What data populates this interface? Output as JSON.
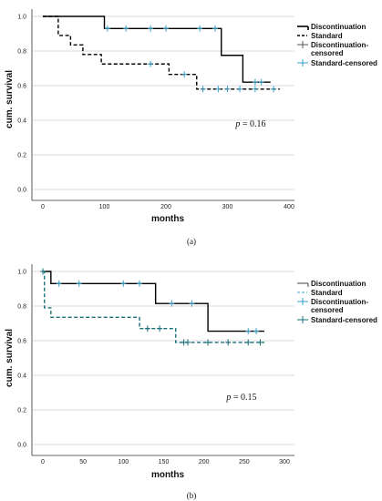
{
  "chart_data": [
    {
      "type": "line",
      "panel_label": "(a)",
      "xlabel": "months",
      "ylabel": "cum. survival",
      "xlim": [
        0,
        400
      ],
      "ylim": [
        0.0,
        1.0
      ],
      "xticks": [
        "0",
        "100",
        "200",
        "300",
        "400"
      ],
      "yticks": [
        "0.0",
        "0.2",
        "0.4",
        "0.6",
        "0.8",
        "1.0"
      ],
      "grid": "horizontal",
      "legend_position": "right",
      "legend": [
        "Discontinuation",
        "Standard",
        "Discontinuation-censored",
        "Standard-censored"
      ],
      "annotation": {
        "p_label": "p",
        "p_rest": " = 0.16"
      },
      "series": [
        {
          "name": "Discontinuation",
          "style": "solid",
          "color": "#000000",
          "steps": [
            [
              0,
              1.0
            ],
            [
              100,
              0.93
            ],
            [
              290,
              0.775
            ],
            [
              325,
              0.62
            ],
            [
              370,
              0.62
            ]
          ],
          "censored": [
            [
              105,
              0.93
            ],
            [
              135,
              0.93
            ],
            [
              175,
              0.93
            ],
            [
              200,
              0.93
            ],
            [
              255,
              0.93
            ],
            [
              280,
              0.93
            ],
            [
              345,
              0.62
            ],
            [
              355,
              0.62
            ]
          ]
        },
        {
          "name": "Standard",
          "style": "dashed",
          "color": "#000000",
          "steps": [
            [
              0,
              1.0
            ],
            [
              25,
              0.89
            ],
            [
              45,
              0.835
            ],
            [
              65,
              0.78
            ],
            [
              95,
              0.725
            ],
            [
              205,
              0.665
            ],
            [
              250,
              0.58
            ],
            [
              385,
              0.58
            ]
          ],
          "censored": [
            [
              175,
              0.725
            ],
            [
              230,
              0.665
            ],
            [
              260,
              0.58
            ],
            [
              285,
              0.58
            ],
            [
              300,
              0.58
            ],
            [
              320,
              0.58
            ],
            [
              345,
              0.58
            ],
            [
              375,
              0.58
            ]
          ]
        }
      ]
    },
    {
      "type": "line",
      "panel_label": "(b)",
      "xlabel": "months",
      "ylabel": "cum. survival",
      "xlim": [
        0,
        300
      ],
      "ylim": [
        0.0,
        1.0
      ],
      "xticks": [
        "0",
        "50",
        "100",
        "150",
        "200",
        "250",
        "300"
      ],
      "yticks": [
        "0.0",
        "0.2",
        "0.4",
        "0.6",
        "0.8",
        "1.0"
      ],
      "grid": "horizontal",
      "legend_position": "right",
      "legend": [
        "Discontinuation",
        "Standard",
        "Discontinuation-censored",
        "Standard-censored"
      ],
      "annotation": {
        "p_label": "p",
        "p_rest": " = 0.15"
      },
      "series": [
        {
          "name": "Discontinuation",
          "style": "solid",
          "color": "#000000",
          "steps": [
            [
              0,
              1.0
            ],
            [
              10,
              0.93
            ],
            [
              140,
              0.815
            ],
            [
              205,
              0.655
            ],
            [
              275,
              0.655
            ]
          ],
          "censored": [
            [
              20,
              0.93
            ],
            [
              45,
              0.93
            ],
            [
              100,
              0.93
            ],
            [
              120,
              0.93
            ],
            [
              160,
              0.815
            ],
            [
              185,
              0.815
            ],
            [
              255,
              0.655
            ],
            [
              265,
              0.655
            ]
          ]
        },
        {
          "name": "Standard",
          "style": "dashed",
          "color": "#1a6f78",
          "steps": [
            [
              0,
              1.0
            ],
            [
              2,
              0.79
            ],
            [
              10,
              0.735
            ],
            [
              120,
              0.67
            ],
            [
              165,
              0.59
            ],
            [
              275,
              0.59
            ]
          ],
          "censored": [
            [
              0,
              1.0
            ],
            [
              130,
              0.67
            ],
            [
              145,
              0.67
            ],
            [
              175,
              0.59
            ],
            [
              180,
              0.59
            ],
            [
              205,
              0.59
            ],
            [
              230,
              0.59
            ],
            [
              255,
              0.59
            ],
            [
              270,
              0.59
            ]
          ]
        }
      ]
    }
  ]
}
